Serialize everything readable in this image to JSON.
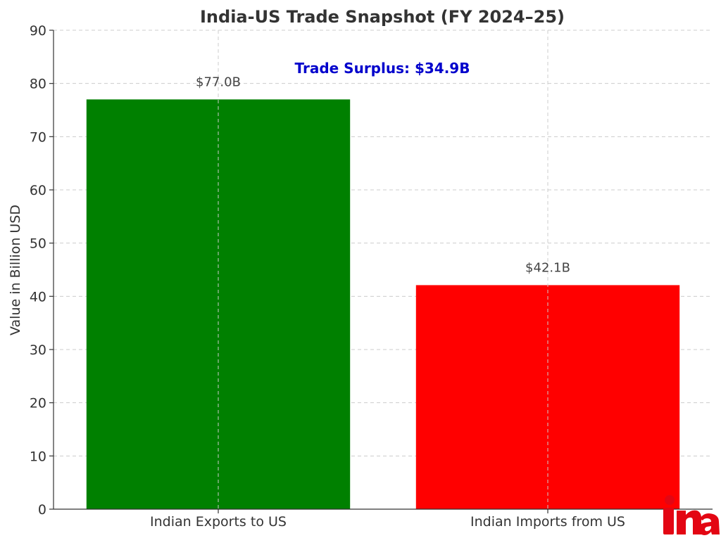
{
  "chart_data": {
    "type": "bar",
    "title": "India-US Trade Snapshot (FY 2024–25)",
    "xlabel": "",
    "ylabel": "Value in Billion USD",
    "categories": [
      "Indian Exports to US",
      "Indian Imports from US"
    ],
    "values": [
      77.0,
      42.1
    ],
    "bar_labels": [
      "$77.0B",
      "$42.1B"
    ],
    "colors": [
      "#008000",
      "#ff0000"
    ],
    "ylim": [
      0,
      90
    ],
    "yticks": [
      0,
      10,
      20,
      30,
      40,
      50,
      60,
      70,
      80,
      90
    ],
    "grid": true,
    "annotation": {
      "text": "Trade Surplus: $34.9B",
      "color": "#0000cc"
    }
  },
  "logo": {
    "text": "ina",
    "color": "#e30613"
  }
}
